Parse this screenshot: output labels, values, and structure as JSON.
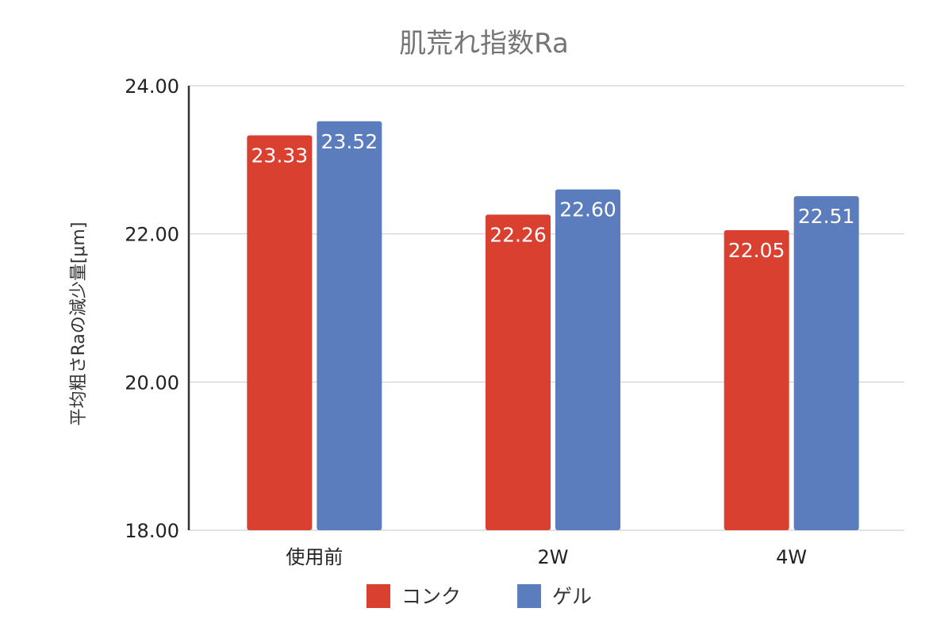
{
  "chart_data": {
    "type": "bar",
    "title": "肌荒れ指数Ra",
    "ylabel": "平均粗さRaの減少量[μm]",
    "xlabel": "",
    "categories": [
      "使用前",
      "2W",
      "4W"
    ],
    "series": [
      {
        "name": "コンク",
        "color": "#d94030",
        "values": [
          23.33,
          22.26,
          22.05
        ],
        "labels": [
          "23.33",
          "22.26",
          "22.05"
        ]
      },
      {
        "name": "ゲル",
        "color": "#5b7dbd",
        "values": [
          23.52,
          22.6,
          22.51
        ],
        "labels": [
          "23.52",
          "22.60",
          "22.51"
        ]
      }
    ],
    "ylim": [
      18.0,
      24.0
    ],
    "yticks": [
      "18.00",
      "20.00",
      "22.00",
      "24.00"
    ],
    "grid": true,
    "legend": "bottom"
  }
}
